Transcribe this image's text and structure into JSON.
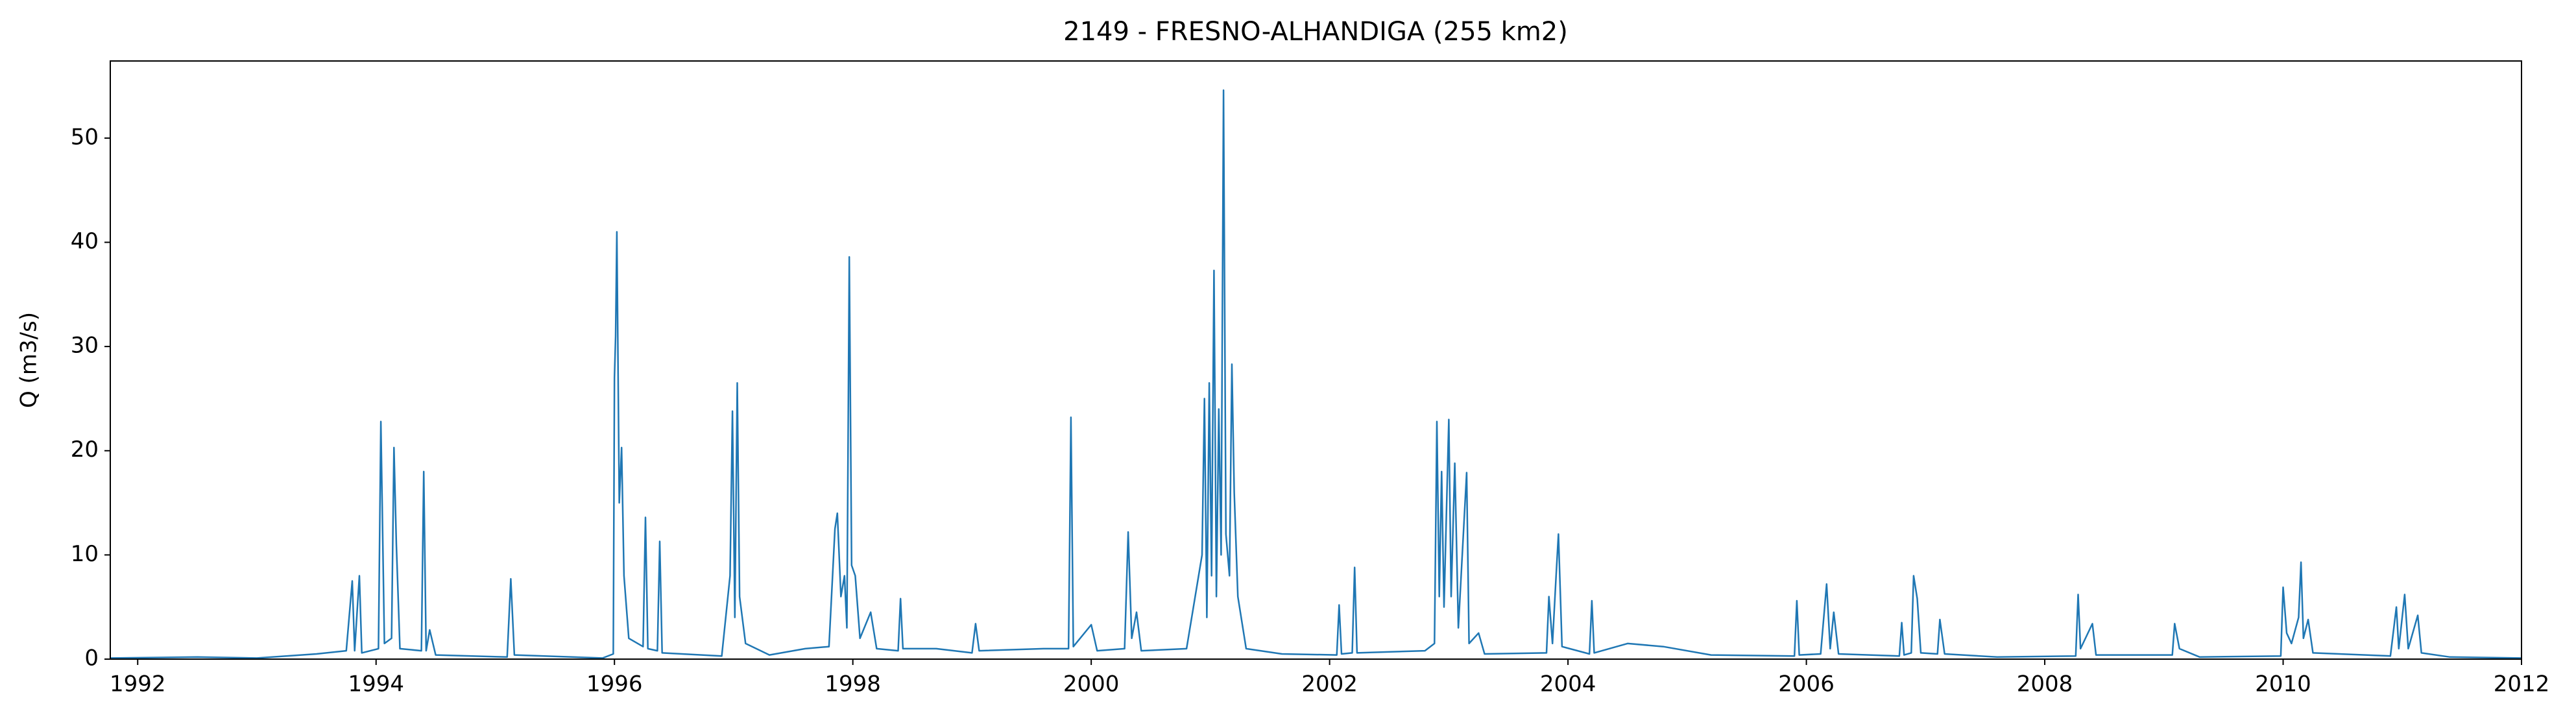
{
  "chart_data": {
    "type": "line",
    "title": "2149 - FRESNO-ALHANDIGA (255 km2)",
    "y_label": "Q (m3/s)",
    "color": "#1f77b4",
    "xlim": [
      1991.77,
      2012.0
    ],
    "xticks": [
      1992,
      1994,
      1996,
      1998,
      2000,
      2002,
      2004,
      2006,
      2008,
      2010,
      2012
    ],
    "ylim": [
      0,
      57.4
    ],
    "yticks": [
      0,
      10,
      20,
      30,
      40,
      50
    ],
    "x": [
      1991.77,
      1992.5,
      1993.0,
      1993.5,
      1993.75,
      1993.8,
      1993.82,
      1993.86,
      1993.88,
      1994.02,
      1994.04,
      1994.07,
      1994.13,
      1994.15,
      1994.17,
      1994.2,
      1994.38,
      1994.4,
      1994.42,
      1994.45,
      1994.5,
      1995.1,
      1995.13,
      1995.16,
      1995.9,
      1995.99,
      1996.0,
      1996.01,
      1996.02,
      1996.04,
      1996.06,
      1996.08,
      1996.12,
      1996.24,
      1996.26,
      1996.28,
      1996.36,
      1996.38,
      1996.4,
      1996.9,
      1996.97,
      1996.99,
      1997.01,
      1997.03,
      1997.05,
      1997.1,
      1997.3,
      1997.6,
      1997.8,
      1997.85,
      1997.87,
      1997.9,
      1997.93,
      1997.95,
      1997.97,
      1997.99,
      1998.02,
      1998.06,
      1998.15,
      1998.2,
      1998.38,
      1998.4,
      1998.42,
      1998.7,
      1999.0,
      1999.03,
      1999.06,
      1999.6,
      1999.81,
      1999.83,
      1999.85,
      2000.0,
      2000.05,
      2000.28,
      2000.31,
      2000.34,
      2000.38,
      2000.42,
      2000.8,
      2000.93,
      2000.95,
      2000.97,
      2000.99,
      2001.01,
      2001.03,
      2001.05,
      2001.07,
      2001.09,
      2001.11,
      2001.13,
      2001.16,
      2001.18,
      2001.2,
      2001.23,
      2001.3,
      2001.6,
      2002.06,
      2002.08,
      2002.1,
      2002.19,
      2002.21,
      2002.23,
      2002.8,
      2002.88,
      2002.9,
      2002.92,
      2002.94,
      2002.96,
      2003.0,
      2003.02,
      2003.05,
      2003.08,
      2003.15,
      2003.17,
      2003.25,
      2003.3,
      2003.82,
      2003.84,
      2003.87,
      2003.9,
      2003.92,
      2003.95,
      2004.18,
      2004.2,
      2004.22,
      2004.5,
      2004.8,
      2005.2,
      2005.9,
      2005.92,
      2005.94,
      2006.12,
      2006.14,
      2006.17,
      2006.2,
      2006.23,
      2006.27,
      2006.78,
      2006.8,
      2006.82,
      2006.88,
      2006.9,
      2006.93,
      2006.96,
      2007.1,
      2007.12,
      2007.16,
      2007.6,
      2008.26,
      2008.28,
      2008.3,
      2008.4,
      2008.43,
      2009.07,
      2009.09,
      2009.13,
      2009.3,
      2009.98,
      2010.0,
      2010.03,
      2010.07,
      2010.13,
      2010.15,
      2010.17,
      2010.21,
      2010.25,
      2010.9,
      2010.95,
      2010.97,
      2011.02,
      2011.05,
      2011.13,
      2011.16,
      2011.4,
      2012.0
    ],
    "values": [
      0.1,
      0.2,
      0.1,
      0.5,
      0.8,
      7.5,
      0.8,
      8.0,
      0.6,
      1.0,
      22.8,
      1.5,
      2.0,
      20.3,
      11,
      1.0,
      0.8,
      18,
      0.8,
      2.8,
      0.4,
      0.2,
      7.7,
      0.4,
      0.1,
      0.5,
      27,
      31,
      41,
      15,
      20.3,
      8,
      2,
      1.2,
      13.6,
      1.0,
      0.8,
      11.3,
      0.6,
      0.3,
      8,
      23.8,
      4,
      26.5,
      6,
      1.5,
      0.4,
      1.0,
      1.2,
      12.5,
      14,
      6,
      8,
      3,
      38.6,
      9,
      8,
      2,
      4.5,
      1.0,
      0.8,
      5.8,
      1.0,
      1.0,
      0.6,
      3.4,
      0.8,
      1.0,
      1.0,
      23.2,
      1.2,
      3.3,
      0.8,
      1.0,
      12.2,
      2,
      4.5,
      0.8,
      1.0,
      10,
      25,
      4,
      26.5,
      8,
      37.3,
      6,
      24,
      10,
      54.6,
      12,
      8,
      28.3,
      16,
      6,
      1.0,
      0.5,
      0.4,
      5.2,
      0.5,
      0.6,
      8.8,
      0.6,
      0.8,
      1.5,
      22.8,
      6,
      18,
      5,
      23,
      6,
      18.8,
      3,
      17.9,
      1.5,
      2.5,
      0.5,
      0.6,
      6,
      1.5,
      7.9,
      12,
      1.2,
      0.5,
      5.6,
      0.6,
      1.5,
      1.2,
      0.4,
      0.3,
      5.6,
      0.4,
      0.5,
      3.2,
      7.2,
      1.0,
      4.5,
      0.5,
      0.3,
      3.5,
      0.4,
      0.6,
      8,
      5.8,
      0.6,
      0.5,
      3.8,
      0.5,
      0.2,
      0.3,
      6.2,
      1.0,
      3.4,
      0.4,
      0.4,
      3.4,
      1.0,
      0.2,
      0.3,
      6.9,
      2.5,
      1.5,
      4,
      9.3,
      2,
      3.8,
      0.6,
      0.3,
      5,
      1,
      6.2,
      1.0,
      4.2,
      0.6,
      0.2,
      0.1
    ]
  }
}
